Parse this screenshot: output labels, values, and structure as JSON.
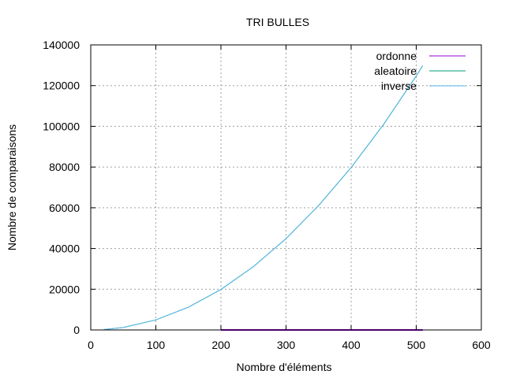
{
  "chart_data": {
    "type": "line",
    "title": "TRI BULLES",
    "xlabel": "Nombre d'éléments",
    "ylabel": "Nombre de comparaisons",
    "xlim": [
      0,
      600
    ],
    "ylim": [
      0,
      140000
    ],
    "x_ticks": [
      "0",
      "100",
      "200",
      "300",
      "400",
      "500",
      "600"
    ],
    "y_ticks": [
      "0",
      "20000",
      "40000",
      "60000",
      "80000",
      "100000",
      "120000",
      "140000"
    ],
    "grid": true,
    "legend_position": "top-right",
    "series": [
      {
        "name": "ordonne",
        "color": "#9400d3",
        "x": [
          200,
          510
        ],
        "y": [
          0,
          0
        ]
      },
      {
        "name": "aleatoire",
        "color": "#009e73",
        "x": [
          20,
          50,
          100,
          150,
          200,
          250,
          300,
          350,
          400,
          450,
          500,
          510
        ],
        "y": [
          190,
          1225,
          4950,
          11175,
          19900,
          31125,
          44850,
          61075,
          79800,
          101025,
          124750,
          129795
        ]
      },
      {
        "name": "inverse",
        "color": "#56b4e9",
        "x": [
          20,
          50,
          100,
          150,
          200,
          250,
          300,
          350,
          400,
          450,
          500,
          510
        ],
        "y": [
          190,
          1225,
          4950,
          11175,
          19900,
          31125,
          44850,
          61075,
          79800,
          101025,
          124750,
          129795
        ]
      }
    ]
  }
}
